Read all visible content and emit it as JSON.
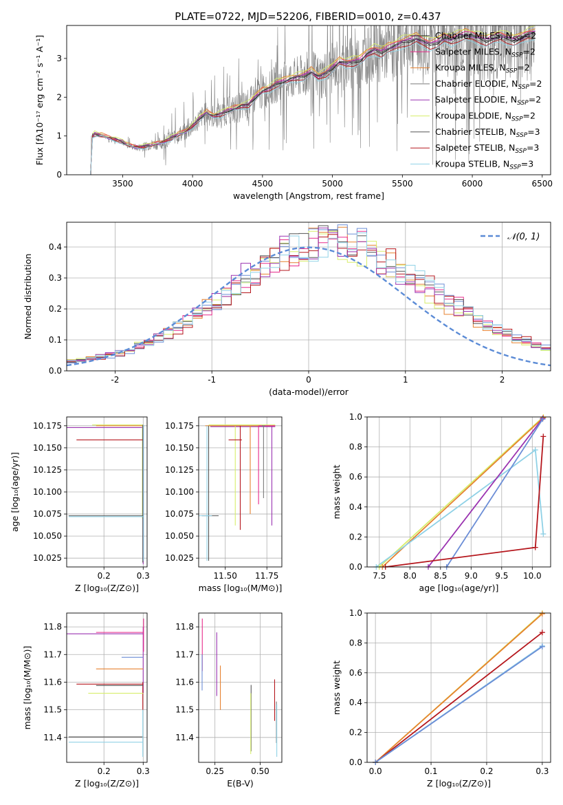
{
  "figure_title": "PLATE=0722, MJD=52206, FIBERID=0010, z=0.437",
  "series_colors": {
    "chabrier_miles": "#1a1a1a",
    "salpeter_miles": "#e7298a",
    "kroupa_miles": "#e6812f",
    "chabrier_elodie": "#7a7a7a",
    "salpeter_elodie": "#9a32b0",
    "kroupa_elodie": "#d7ee6a",
    "chabrier_stelib": "#555555",
    "salpeter_stelib": "#b5161c",
    "kroupa_stelib": "#8fd1e6",
    "gauss": "#5b8bd6",
    "data": "#808080",
    "blue": "#6b8dd6",
    "cyan": "#8fd1e6",
    "yellow": "#d7ee6a"
  },
  "chart_data": [
    {
      "type": "line",
      "id": "spectrum",
      "title": "PLATE=0722, MJD=52206, FIBERID=0010, z=0.437",
      "xlabel": "wavelength [Angstrom, rest frame]",
      "ylabel": "Flux [fλ10⁻¹⁷ erg cm⁻² s⁻¹ A⁻¹]",
      "xlim": [
        3100,
        6560
      ],
      "ylim": [
        0,
        3.85
      ],
      "xticks": [
        3500,
        4000,
        4500,
        5000,
        5500,
        6000,
        6500
      ],
      "yticks": [
        0,
        1,
        2,
        3
      ],
      "legend_position": "upper right",
      "legend": [
        "Chabrier MILES, N_SSP=2",
        "Salpeter MILES, N_SSP=2",
        "Kroupa MILES, N_SSP=2",
        "Chabrier ELODIE, N_SSP=2",
        "Salpeter ELODIE, N_SSP=2",
        "Kroupa ELODIE, N_SSP=2",
        "Chabrier STELIB, N_SSP=3",
        "Salpeter STELIB, N_SSP=3",
        "Kroupa STELIB, N_SSP=3"
      ],
      "model_x": [
        3270,
        3285,
        3300,
        3350,
        3400,
        3450,
        3500,
        3550,
        3600,
        3650,
        3700,
        3750,
        3800,
        3850,
        3900,
        3950,
        4000,
        4050,
        4100,
        4150,
        4200,
        4250,
        4300,
        4350,
        4400,
        4450,
        4500,
        4550,
        4600,
        4650,
        4700,
        4750,
        4800,
        4850,
        4900,
        4950,
        5000,
        5050,
        5100,
        5150,
        5200,
        5250,
        5300,
        5350,
        5400,
        5450,
        5500,
        5550,
        5600,
        5650,
        5700,
        5750,
        5800,
        5850,
        5900,
        5950,
        6000,
        6050,
        6100,
        6150,
        6200,
        6250,
        6300,
        6350,
        6400,
        6450
      ],
      "model_y": [
        0,
        1.0,
        1.05,
        1.02,
        0.95,
        0.9,
        0.85,
        0.75,
        0.7,
        0.72,
        0.78,
        0.8,
        0.85,
        0.95,
        1.05,
        1.1,
        1.25,
        1.45,
        1.6,
        1.5,
        1.55,
        1.65,
        1.7,
        1.75,
        1.8,
        2.0,
        2.15,
        2.2,
        2.35,
        2.4,
        2.45,
        2.5,
        2.55,
        2.65,
        2.5,
        2.6,
        2.75,
        2.9,
        2.85,
        2.9,
        2.95,
        3.1,
        3.2,
        3.15,
        3.25,
        3.3,
        3.4,
        3.45,
        3.5,
        3.4,
        3.35,
        3.4,
        3.5,
        3.45,
        3.55,
        3.6,
        3.55,
        3.5,
        3.45,
        3.5,
        3.55,
        3.5,
        3.45,
        3.5,
        3.6,
        3.65
      ]
    },
    {
      "type": "area",
      "id": "residuals",
      "xlabel": "(data-model)/error",
      "ylabel": "Normed distribution",
      "xlim": [
        -2.5,
        2.5
      ],
      "ylim": [
        0,
        0.48
      ],
      "xticks": [
        -2,
        -1,
        0,
        1,
        2
      ],
      "yticks": [
        0.0,
        0.1,
        0.2,
        0.3,
        0.4
      ],
      "legend": [
        "𝒩(0, 1)"
      ],
      "legend_position": "upper right",
      "grid": true
    },
    {
      "type": "scatter",
      "id": "age_vs_Z",
      "xlabel": "Z [log₁₀(Z/Z⊙)]",
      "ylabel": "age  [log₁₀(age/yr)]",
      "xlim": [
        0.105,
        0.31
      ],
      "ylim": [
        10.015,
        10.185
      ],
      "xticks": [
        0.2,
        0.3
      ],
      "yticks": [
        10.025,
        10.05,
        10.075,
        10.1,
        10.125,
        10.15,
        10.175
      ],
      "grid": true
    },
    {
      "type": "scatter",
      "id": "age_vs_mass",
      "xlabel": "mass [log₁₀(M/M⊙)]",
      "xlim": [
        11.34,
        11.84
      ],
      "ylim": [
        10.015,
        10.185
      ],
      "xticks": [
        11.5,
        11.75
      ],
      "yticks": [
        10.025,
        10.05,
        10.075,
        10.1,
        10.125,
        10.15,
        10.175
      ],
      "grid": true
    },
    {
      "type": "line",
      "id": "massweight_vs_age",
      "xlabel": "age  [log₁₀(age/yr)]",
      "ylabel": "mass weight",
      "xlim": [
        7.3,
        10.3
      ],
      "ylim": [
        0,
        1
      ],
      "xticks": [
        7.5,
        8.0,
        8.5,
        9.0,
        9.5,
        10.0
      ],
      "yticks": [
        0.0,
        0.2,
        0.4,
        0.6,
        0.8,
        1.0
      ],
      "grid": true,
      "series": [
        {
          "name": "",
          "color": "#d7ee6a",
          "x": [
            7.5,
            10.18
          ],
          "y": [
            0.0,
            1.0
          ]
        },
        {
          "name": "",
          "color": "#e6812f",
          "x": [
            7.55,
            10.18
          ],
          "y": [
            0.0,
            0.995
          ]
        },
        {
          "name": "",
          "color": "#8fd1e6",
          "x": [
            7.45,
            10.05,
            10.18
          ],
          "y": [
            0.0,
            0.78,
            0.22
          ]
        },
        {
          "name": "",
          "color": "#9a32b0",
          "x": [
            8.3,
            10.17
          ],
          "y": [
            0.0,
            0.99
          ]
        },
        {
          "name": "",
          "color": "#6b8dd6",
          "x": [
            8.6,
            10.17
          ],
          "y": [
            0.0,
            0.985
          ]
        },
        {
          "name": "",
          "color": "#b5161c",
          "x": [
            7.6,
            10.05,
            10.18
          ],
          "y": [
            0.0,
            0.13,
            0.87
          ]
        }
      ]
    },
    {
      "type": "scatter",
      "id": "mass_vs_Z",
      "xlabel": "Z [log₁₀(Z/Z⊙)]",
      "ylabel": "mass [log₁₀(M/M⊙)]",
      "xlim": [
        0.105,
        0.31
      ],
      "ylim": [
        11.31,
        11.85
      ],
      "xticks": [
        0.2,
        0.3
      ],
      "yticks": [
        11.4,
        11.5,
        11.6,
        11.7,
        11.8
      ],
      "grid": true
    },
    {
      "type": "scatter",
      "id": "mass_vs_ebv",
      "xlabel": "E(B-V)",
      "xlim": [
        0.16,
        0.62
      ],
      "ylim": [
        11.31,
        11.85
      ],
      "xticks": [
        0.25,
        0.5
      ],
      "yticks": [
        11.4,
        11.5,
        11.6,
        11.7,
        11.8
      ],
      "grid": true
    },
    {
      "type": "line",
      "id": "massweight_vs_Z",
      "xlabel": "Z [log₁₀(Z/Z⊙)]",
      "ylabel": "mass weight",
      "xlim": [
        -0.015,
        0.315
      ],
      "ylim": [
        0,
        1
      ],
      "xticks": [
        0.0,
        0.1,
        0.2,
        0.3
      ],
      "yticks": [
        0.0,
        0.2,
        0.4,
        0.6,
        0.8,
        1.0
      ],
      "grid": true,
      "series": [
        {
          "name": "",
          "color": "#d7ee6a",
          "x": [
            0.0,
            0.3
          ],
          "y": [
            0.0,
            1.0
          ]
        },
        {
          "name": "",
          "color": "#e6812f",
          "x": [
            0.0,
            0.3
          ],
          "y": [
            0.0,
            0.995
          ]
        },
        {
          "name": "",
          "color": "#b5161c",
          "x": [
            0.0,
            0.3
          ],
          "y": [
            0.0,
            0.87
          ]
        },
        {
          "name": "",
          "color": "#8fd1e6",
          "x": [
            0.0,
            0.3
          ],
          "y": [
            0.0,
            0.78
          ]
        },
        {
          "name": "",
          "color": "#6b8dd6",
          "x": [
            0.0,
            0.3
          ],
          "y": [
            0.0,
            0.775
          ]
        }
      ]
    }
  ]
}
